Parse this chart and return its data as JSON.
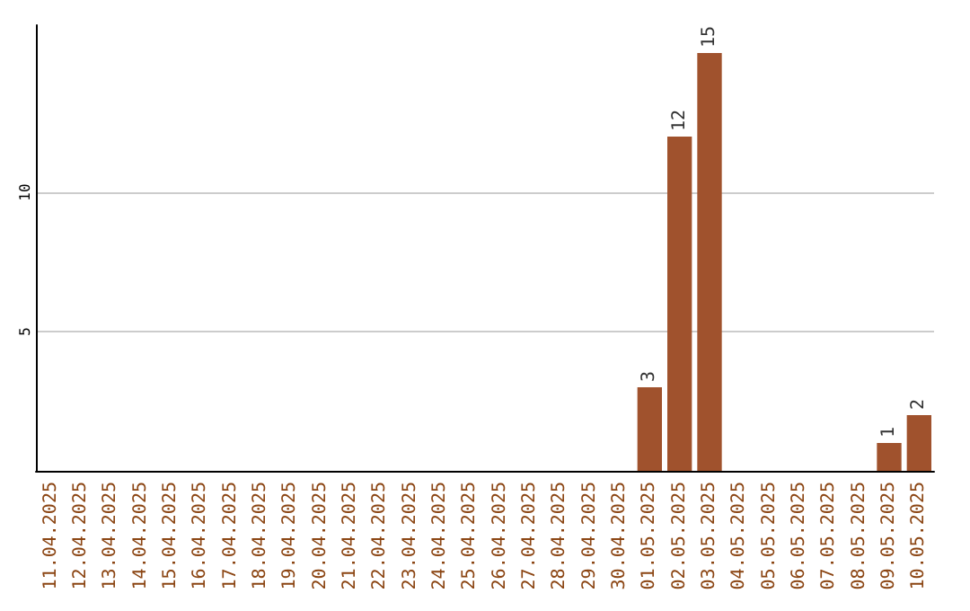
{
  "chart_data": {
    "type": "bar",
    "categories": [
      "11.04.2025",
      "12.04.2025",
      "13.04.2025",
      "14.04.2025",
      "15.04.2025",
      "16.04.2025",
      "17.04.2025",
      "18.04.2025",
      "19.04.2025",
      "20.04.2025",
      "21.04.2025",
      "22.04.2025",
      "23.04.2025",
      "24.04.2025",
      "25.04.2025",
      "26.04.2025",
      "27.04.2025",
      "28.04.2025",
      "29.04.2025",
      "30.04.2025",
      "01.05.2025",
      "02.05.2025",
      "03.05.2025",
      "04.05.2025",
      "05.05.2025",
      "06.05.2025",
      "07.05.2025",
      "08.05.2025",
      "09.05.2025",
      "10.05.2025"
    ],
    "values": [
      0,
      0,
      0,
      0,
      0,
      0,
      0,
      0,
      0,
      0,
      0,
      0,
      0,
      0,
      0,
      0,
      0,
      0,
      0,
      0,
      3,
      12,
      15,
      0,
      0,
      0,
      0,
      0,
      1,
      2
    ],
    "value_labels": [
      null,
      null,
      null,
      null,
      null,
      null,
      null,
      null,
      null,
      null,
      null,
      null,
      null,
      null,
      null,
      null,
      null,
      null,
      null,
      null,
      "3",
      "12",
      "15",
      null,
      null,
      null,
      null,
      null,
      "1",
      "2"
    ],
    "color": "#a0522d",
    "ylim": [
      0,
      16
    ],
    "yticks": [
      5,
      10
    ],
    "grid": "y"
  }
}
